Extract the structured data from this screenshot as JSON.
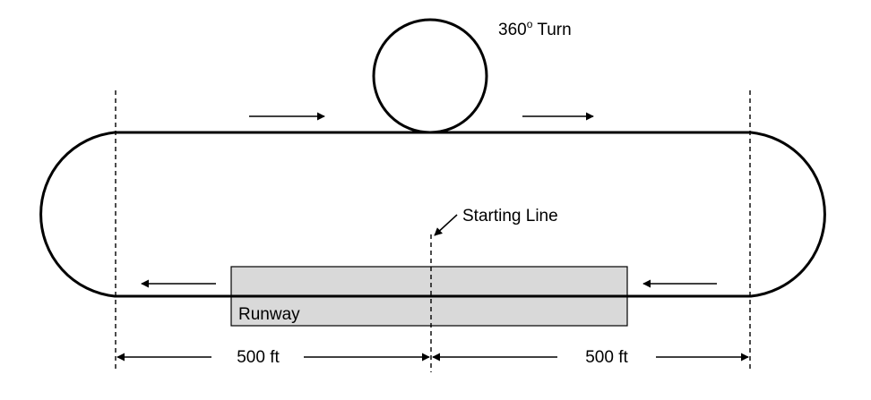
{
  "labels": {
    "turn_prefix": "360",
    "turn_sup": "o",
    "turn_suffix": " Turn",
    "starting_line": "Starting Line",
    "runway": "Runway",
    "distance_left": "500 ft",
    "distance_right": "500 ft"
  },
  "colors": {
    "runway_fill": "#d9d9d9",
    "stroke": "#000000"
  }
}
